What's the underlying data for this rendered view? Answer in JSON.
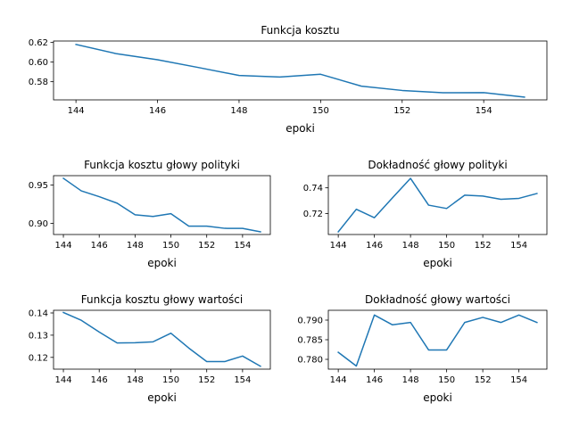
{
  "chart_data": [
    {
      "type": "line",
      "title": "Funkcja kosztu",
      "xlabel": "epoki",
      "ylabel": "",
      "grid": false,
      "xlim": [
        143.45,
        155.55
      ],
      "ylim": [
        0.5615,
        0.6215
      ],
      "xticks": [
        144,
        146,
        148,
        150,
        152,
        154
      ],
      "yticks": [
        0.58,
        0.6,
        0.62
      ],
      "ytick_labels": [
        "0.58",
        "0.60",
        "0.62"
      ],
      "color": "#1f77b4",
      "x": [
        144,
        145,
        146,
        147,
        148,
        149,
        150,
        151,
        152,
        153,
        154,
        155
      ],
      "values": [
        0.618,
        0.6085,
        0.6024,
        0.5945,
        0.5864,
        0.5848,
        0.5876,
        0.5755,
        0.5711,
        0.5688,
        0.5689,
        0.5643
      ]
    },
    {
      "type": "line",
      "title": "Funkcja kosztu głowy polityki",
      "xlabel": "epoki",
      "ylabel": "",
      "grid": false,
      "xlim": [
        143.45,
        155.55
      ],
      "ylim": [
        0.8853,
        0.9623
      ],
      "xticks": [
        144,
        146,
        148,
        150,
        152,
        154
      ],
      "yticks": [
        0.9,
        0.95
      ],
      "ytick_labels": [
        "0.90",
        "0.95"
      ],
      "color": "#1f77b4",
      "x": [
        144,
        145,
        146,
        147,
        148,
        149,
        150,
        151,
        152,
        153,
        154,
        155
      ],
      "values": [
        0.9588,
        0.9424,
        0.9348,
        0.9263,
        0.9111,
        0.9089,
        0.9126,
        0.8962,
        0.8962,
        0.8934,
        0.8933,
        0.8888
      ]
    },
    {
      "type": "line",
      "title": "Dokładność głowy polityki",
      "xlabel": "epoki",
      "ylabel": "",
      "grid": false,
      "xlim": [
        143.45,
        155.55
      ],
      "ylim": [
        0.7036,
        0.7495
      ],
      "xticks": [
        144,
        146,
        148,
        150,
        152,
        154
      ],
      "yticks": [
        0.72,
        0.74
      ],
      "ytick_labels": [
        "0.72",
        "0.74"
      ],
      "color": "#1f77b4",
      "x": [
        144,
        145,
        146,
        147,
        148,
        149,
        150,
        151,
        152,
        153,
        154,
        155
      ],
      "values": [
        0.7057,
        0.7233,
        0.7167,
        0.7322,
        0.7474,
        0.7265,
        0.7239,
        0.7343,
        0.7336,
        0.7311,
        0.7318,
        0.7356
      ]
    },
    {
      "type": "line",
      "title": "Funkcja kosztu głowy wartości",
      "xlabel": "epoki",
      "ylabel": "",
      "grid": false,
      "xlim": [
        143.45,
        155.55
      ],
      "ylim": [
        0.1147,
        0.1412
      ],
      "xticks": [
        144,
        146,
        148,
        150,
        152,
        154
      ],
      "yticks": [
        0.12,
        0.13,
        0.14
      ],
      "ytick_labels": [
        "0.12",
        "0.13",
        "0.14"
      ],
      "color": "#1f77b4",
      "x": [
        144,
        145,
        146,
        147,
        148,
        149,
        150,
        151,
        152,
        153,
        154,
        155
      ],
      "values": [
        0.1402,
        0.1367,
        0.1314,
        0.1265,
        0.1266,
        0.127,
        0.1309,
        0.1242,
        0.1181,
        0.1181,
        0.1206,
        0.116
      ]
    },
    {
      "type": "line",
      "title": "Dokładność głowy wartości",
      "xlabel": "epoki",
      "ylabel": "",
      "grid": false,
      "xlim": [
        143.45,
        155.55
      ],
      "ylim": [
        0.7775,
        0.7925
      ],
      "xticks": [
        144,
        146,
        148,
        150,
        152,
        154
      ],
      "yticks": [
        0.78,
        0.785,
        0.79
      ],
      "ytick_labels": [
        "0.780",
        "0.785",
        "0.790"
      ],
      "color": "#1f77b4",
      "x": [
        144,
        145,
        146,
        147,
        148,
        149,
        150,
        151,
        152,
        153,
        154,
        155
      ],
      "values": [
        0.7818,
        0.7783,
        0.7913,
        0.7888,
        0.7894,
        0.7824,
        0.7824,
        0.7894,
        0.7907,
        0.7894,
        0.7913,
        0.7894
      ]
    }
  ]
}
